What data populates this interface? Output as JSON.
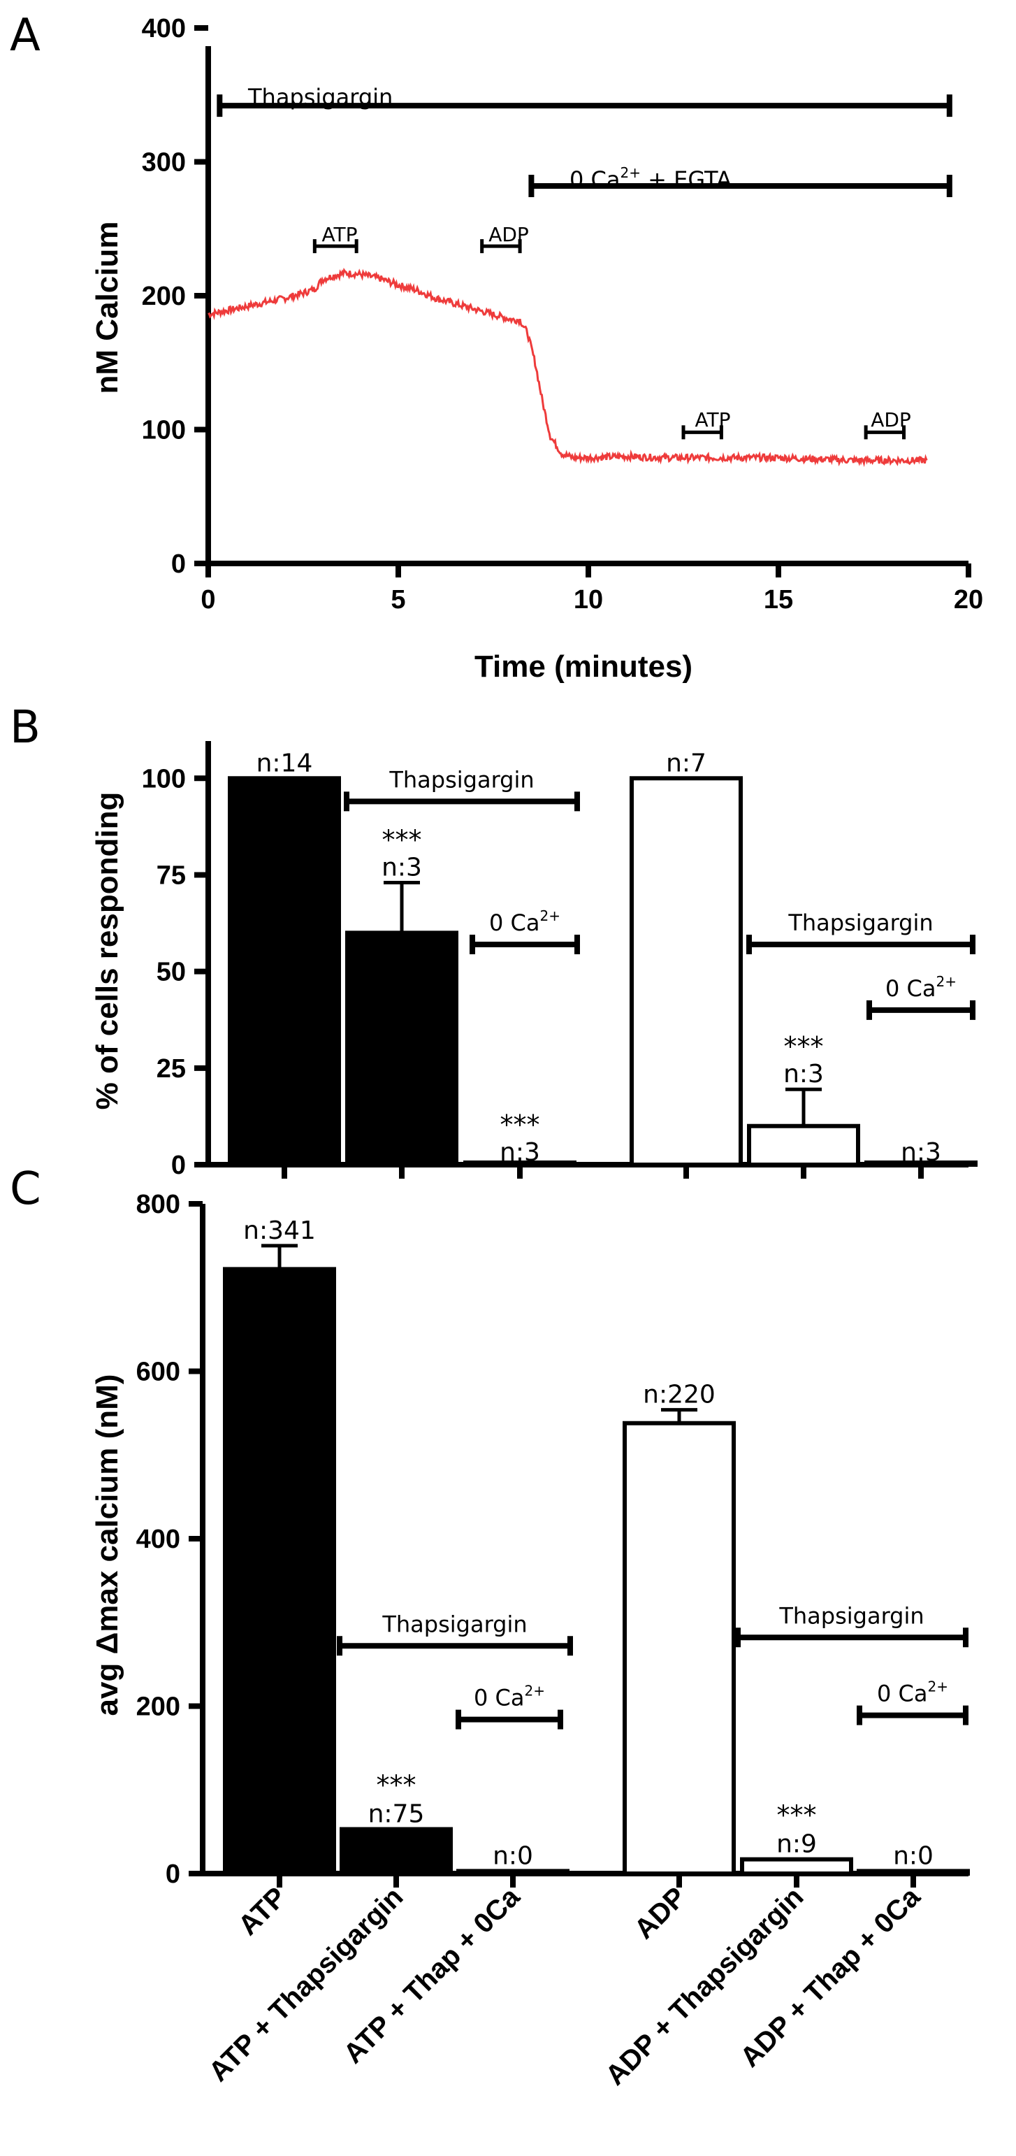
{
  "chart_data": [
    {
      "panel": "A",
      "type": "line",
      "xlabel": "Time (minutes)",
      "ylabel": "nM Calcium",
      "xlim": [
        0,
        20
      ],
      "ylim": [
        0,
        400
      ],
      "xticks": [
        "0",
        "5",
        "10",
        "15",
        "20"
      ],
      "yticks": [
        "0",
        "100",
        "200",
        "300",
        "400"
      ],
      "series": [
        {
          "color": "#ee3b3b",
          "x": [
            0,
            0.5,
            1.0,
            1.5,
            2.0,
            2.5,
            2.8,
            3.0,
            3.3,
            3.6,
            4.0,
            4.5,
            5.0,
            5.5,
            6.0,
            6.5,
            7.0,
            7.5,
            8.0,
            8.2,
            8.4,
            8.6,
            8.8,
            9.0,
            9.3,
            9.6,
            10.0,
            11.0,
            12.0,
            13.0,
            14.0,
            15.0,
            16.0,
            17.0,
            18.0,
            18.9
          ],
          "y": [
            186,
            189,
            192,
            195,
            198,
            202,
            205,
            212,
            215,
            217,
            216,
            213,
            208,
            204,
            198,
            194,
            190,
            186,
            182,
            182,
            172,
            150,
            120,
            95,
            82,
            79,
            79,
            80,
            79,
            79,
            79,
            79,
            78,
            77,
            77,
            77
          ]
        }
      ],
      "annotations": [
        {
          "id": "thapsigargin",
          "label": "Thapsigargin",
          "x1": 0.3,
          "x2": 19.5,
          "y": 342
        },
        {
          "id": "zero-ca-egta",
          "label_main": "0 Ca",
          "label_sup": "2+",
          "label_tail": " + EGTA",
          "x1": 8.5,
          "x2": 19.5,
          "y": 282
        },
        {
          "id": "atp-1",
          "label": "ATP",
          "x1": 2.8,
          "x2": 3.9,
          "y": 237
        },
        {
          "id": "adp-1",
          "label": "ADP",
          "x1": 7.2,
          "x2": 8.2,
          "y": 237
        },
        {
          "id": "atp-2",
          "label": "ATP",
          "x1": 12.5,
          "x2": 13.5,
          "y": 98
        },
        {
          "id": "adp-2",
          "label": "ADP",
          "x1": 17.3,
          "x2": 18.3,
          "y": 98
        }
      ]
    },
    {
      "panel": "B",
      "type": "bar",
      "ylabel": "% of cells responding",
      "ylim": [
        0,
        110
      ],
      "yticks": [
        "0",
        "25",
        "50",
        "75",
        "100"
      ],
      "bars": [
        {
          "value": 100,
          "error": 0,
          "fill": "#000000",
          "n": "n:14",
          "stars": ""
        },
        {
          "value": 60,
          "error": 13,
          "fill": "#000000",
          "n": "n:3",
          "stars": "***"
        },
        {
          "value": 0,
          "error": 0,
          "fill": "#000000",
          "n": "n:3",
          "stars": "***"
        },
        {
          "value": 100,
          "error": 0,
          "fill": "#ffffff",
          "n": "n:7",
          "stars": ""
        },
        {
          "value": 10,
          "error": 9.5,
          "fill": "#ffffff",
          "n": "n:3",
          "stars": "***"
        },
        {
          "value": 0,
          "error": 0,
          "fill": "#ffffff",
          "n": "n:3",
          "stars": ""
        }
      ],
      "annotations": [
        {
          "id": "b-thap-1",
          "label": "Thapsigargin",
          "y": 94
        },
        {
          "id": "b-zero-ca-1",
          "label_main": "0 Ca",
          "label_sup": "2+",
          "y": 57
        },
        {
          "id": "b-thap-2",
          "label": "Thapsigargin",
          "y": 57
        },
        {
          "id": "b-zero-ca-2",
          "label_main": "0 Ca",
          "label_sup": "2+",
          "y": 40
        }
      ]
    },
    {
      "panel": "C",
      "type": "bar",
      "ylabel": "avg Δmax calcium (nM)",
      "ylim": [
        0,
        800
      ],
      "yticks": [
        "0",
        "200",
        "400",
        "600",
        "800"
      ],
      "categories": [
        "ATP",
        "ATP + Thapsigargin",
        "ATP + Thap + 0Ca",
        "ADP",
        "ADP + Thapsigargin",
        "ADP + Thap + 0Ca"
      ],
      "bars": [
        {
          "value": 722,
          "error": 28,
          "fill": "#000000",
          "n": "n:341",
          "stars": ""
        },
        {
          "value": 53,
          "error": 0,
          "fill": "#000000",
          "n": "n:75",
          "stars": "***"
        },
        {
          "value": 3,
          "error": 0,
          "fill": "#000000",
          "n": "n:0",
          "stars": ""
        },
        {
          "value": 538,
          "error": 16,
          "fill": "#ffffff",
          "n": "n:220",
          "stars": ""
        },
        {
          "value": 17,
          "error": 0,
          "fill": "#ffffff",
          "n": "n:9",
          "stars": "***"
        },
        {
          "value": 3,
          "error": 0,
          "fill": "#ffffff",
          "n": "n:0",
          "stars": ""
        }
      ],
      "annotations": [
        {
          "id": "c-thap-1",
          "label": "Thapsigargin",
          "y": 272
        },
        {
          "id": "c-zero-ca-1",
          "label_main": "0 Ca",
          "label_sup": "2+",
          "y": 184
        },
        {
          "id": "c-thap-2",
          "label": "Thapsigargin",
          "y": 282
        },
        {
          "id": "c-zero-ca-2",
          "label_main": "0 Ca",
          "label_sup": "2+",
          "y": 189
        }
      ]
    }
  ],
  "panel_letters": [
    "A",
    "B",
    "C"
  ]
}
